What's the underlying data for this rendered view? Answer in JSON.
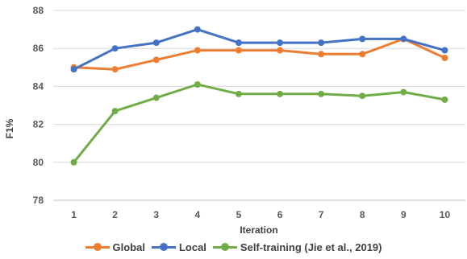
{
  "chart_data": {
    "type": "line",
    "title": "",
    "xlabel": "Iteration",
    "ylabel": "F1%",
    "x": [
      1,
      2,
      3,
      4,
      5,
      6,
      7,
      8,
      9,
      10
    ],
    "ylim": [
      78,
      88
    ],
    "yticks": [
      78,
      80,
      82,
      84,
      86,
      88
    ],
    "grid": true,
    "legend_position": "bottom",
    "series": [
      {
        "name": "Global",
        "color": "#ED7D31",
        "values": [
          85.0,
          84.9,
          85.4,
          85.9,
          85.9,
          85.9,
          85.7,
          85.7,
          86.5,
          85.5
        ]
      },
      {
        "name": "Local",
        "color": "#4472C4",
        "values": [
          84.9,
          86.0,
          86.3,
          87.0,
          86.3,
          86.3,
          86.3,
          86.5,
          86.5,
          85.9
        ]
      },
      {
        "name": "Self-training (Jie et al., 2019)",
        "color": "#70AD47",
        "values": [
          80.0,
          82.7,
          83.4,
          84.1,
          83.6,
          83.6,
          83.6,
          83.5,
          83.7,
          83.3
        ]
      }
    ]
  }
}
